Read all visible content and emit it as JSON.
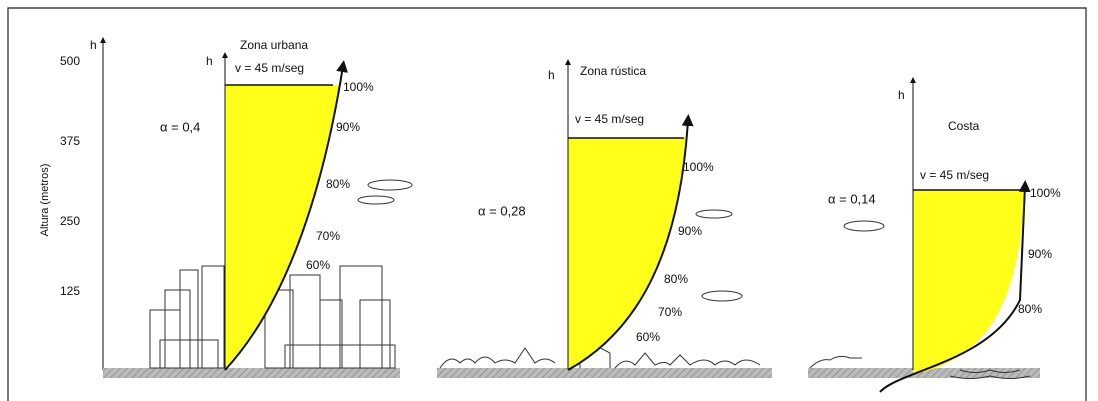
{
  "axis": {
    "symbol": "h",
    "label": "Altura (metros)",
    "ticks": [
      500,
      375,
      250,
      125
    ]
  },
  "panels": [
    {
      "symbol": "h",
      "title": "Zona urbana",
      "velocity": "v = 45 m/seg",
      "alpha": "α = 0,4",
      "percentages": [
        "100%",
        "90%",
        "80%",
        "70%",
        "60%"
      ]
    },
    {
      "symbol": "h",
      "title": "Zona rústica",
      "velocity": "v = 45 m/seg",
      "alpha": "α = 0,28",
      "percentages": [
        "100%",
        "90%",
        "80%",
        "70%",
        "60%"
      ]
    },
    {
      "symbol": "h",
      "title": "Costa",
      "velocity": "v = 45 m/seg",
      "alpha": "α = 0,14",
      "percentages": [
        "100%",
        "90%",
        "80%"
      ]
    }
  ]
}
